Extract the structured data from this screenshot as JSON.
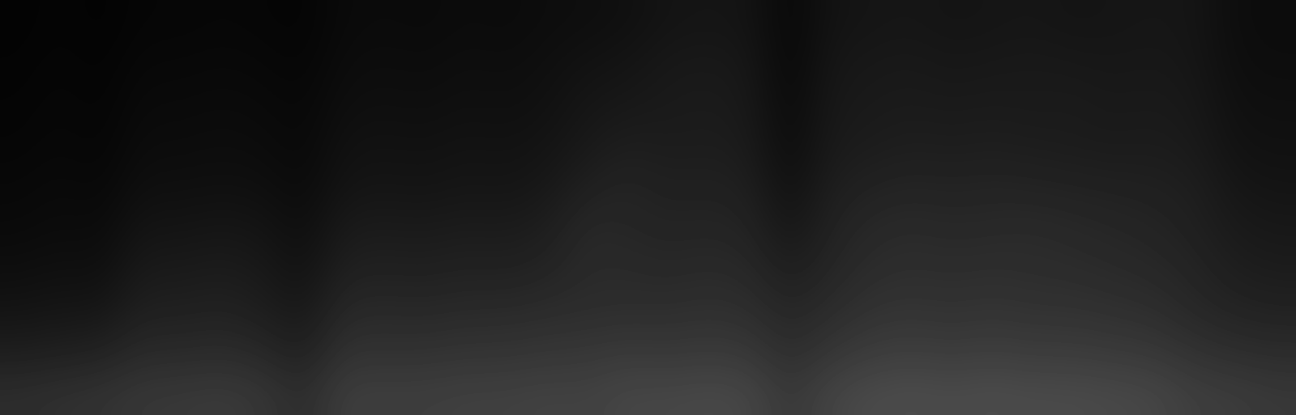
{
  "chart_data": {
    "type": "heatmap",
    "color": "gray",
    "tick_labels": false,
    "color_range": [
      0,
      255
    ],
    "cells": [
      [
        3,
        5,
        3,
        6,
        6,
        7,
        6,
        5,
        10,
        11,
        10,
        12,
        11,
        13,
        14,
        16,
        20,
        21,
        20,
        8,
        19,
        21,
        22,
        20,
        21,
        22,
        20,
        21,
        22,
        21,
        13,
        12
      ],
      [
        4,
        6,
        4,
        8,
        8,
        9,
        8,
        6,
        12,
        13,
        12,
        14,
        13,
        15,
        18,
        20,
        24,
        25,
        23,
        8,
        22,
        24,
        25,
        23,
        24,
        25,
        24,
        23,
        24,
        22,
        14,
        13
      ],
      [
        5,
        7,
        5,
        10,
        10,
        11,
        10,
        8,
        14,
        15,
        14,
        16,
        15,
        17,
        22,
        24,
        26,
        27,
        25,
        10,
        24,
        26,
        27,
        26,
        27,
        26,
        27,
        25,
        26,
        24,
        16,
        15
      ],
      [
        6,
        8,
        6,
        12,
        12,
        13,
        12,
        9,
        17,
        18,
        17,
        19,
        18,
        20,
        25,
        30,
        28,
        29,
        27,
        12,
        26,
        28,
        30,
        29,
        30,
        29,
        28,
        27,
        28,
        26,
        18,
        17
      ],
      [
        8,
        10,
        8,
        15,
        15,
        16,
        15,
        11,
        20,
        21,
        20,
        22,
        21,
        24,
        32,
        36,
        32,
        33,
        31,
        16,
        30,
        34,
        36,
        35,
        36,
        35,
        34,
        33,
        32,
        30,
        22,
        20
      ],
      [
        10,
        12,
        11,
        20,
        20,
        22,
        20,
        14,
        26,
        27,
        26,
        28,
        27,
        30,
        40,
        38,
        36,
        37,
        35,
        22,
        34,
        40,
        42,
        40,
        41,
        42,
        40,
        38,
        36,
        32,
        26,
        24
      ],
      [
        14,
        16,
        15,
        26,
        26,
        28,
        25,
        18,
        32,
        33,
        32,
        34,
        33,
        36,
        42,
        42,
        40,
        42,
        40,
        30,
        38,
        44,
        46,
        45,
        46,
        45,
        44,
        42,
        40,
        36,
        30,
        28
      ],
      [
        20,
        22,
        22,
        32,
        32,
        34,
        30,
        24,
        40,
        41,
        40,
        42,
        42,
        44,
        45,
        46,
        46,
        48,
        46,
        38,
        44,
        50,
        52,
        50,
        52,
        50,
        50,
        48,
        46,
        40,
        36,
        34
      ],
      [
        30,
        32,
        34,
        42,
        42,
        44,
        40,
        32,
        50,
        50,
        50,
        52,
        52,
        54,
        55,
        58,
        56,
        58,
        56,
        45,
        54,
        60,
        62,
        60,
        62,
        60,
        60,
        58,
        56,
        50,
        46,
        44
      ],
      [
        45,
        48,
        50,
        55,
        56,
        58,
        54,
        44,
        62,
        62,
        62,
        64,
        64,
        66,
        65,
        70,
        70,
        72,
        70,
        55,
        68,
        74,
        76,
        74,
        76,
        74,
        74,
        72,
        70,
        62,
        60,
        56
      ]
    ]
  }
}
